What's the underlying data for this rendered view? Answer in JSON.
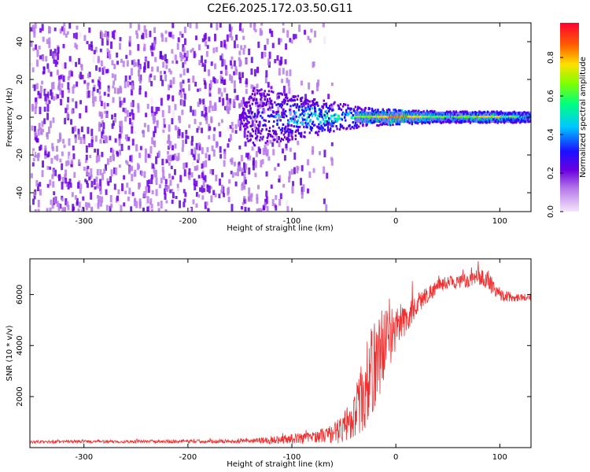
{
  "title": "C2E6.2025.172.03.50.G11",
  "chart_data": [
    {
      "type": "heatmap",
      "xlabel": "Height of straight line (km)",
      "ylabel": "Frequency (Hz)",
      "xlim": [
        -352,
        130
      ],
      "ylim": [
        -50,
        50
      ],
      "xticks": [
        -300,
        -200,
        -100,
        0,
        100
      ],
      "yticks": [
        -40,
        -20,
        0,
        20,
        40
      ],
      "colorbar": {
        "label": "Normalized spectral amplitude",
        "range": [
          0,
          0.98
        ],
        "ticks": [
          "0.0",
          "0.2",
          "0.4",
          "0.6",
          "0.8"
        ],
        "colormap": "rainbow",
        "colors": [
          "#f4e6fb",
          "#b77be8",
          "#6a00e0",
          "#1a10ff",
          "#00c8ff",
          "#00ff80",
          "#80ff00",
          "#ffe000",
          "#ff6000",
          "#ff0030"
        ]
      },
      "signal_profile": [
        {
          "x": -352,
          "width_hz": 0,
          "amplitude": 0.15
        },
        {
          "x": -150,
          "width_hz": 0,
          "amplitude": 0.2
        },
        {
          "x": -140,
          "width_hz": 16,
          "amplitude": 0.3
        },
        {
          "x": -100,
          "width_hz": 12,
          "amplitude": 0.5
        },
        {
          "x": -60,
          "width_hz": 8,
          "amplitude": 0.55
        },
        {
          "x": -30,
          "width_hz": 5,
          "amplitude": 0.65
        },
        {
          "x": 0,
          "width_hz": 4,
          "amplitude": 0.9
        },
        {
          "x": 50,
          "width_hz": 3,
          "amplitude": 0.6
        },
        {
          "x": 90,
          "width_hz": 3,
          "amplitude": 0.8
        },
        {
          "x": 130,
          "width_hz": 3,
          "amplitude": 0.5
        }
      ]
    },
    {
      "type": "line",
      "xlabel": "Height of straight line (km)",
      "ylabel": "SNR (10 * v/v)",
      "xlim": [
        -352,
        130
      ],
      "ylim": [
        0,
        7400
      ],
      "xticks": [
        -300,
        -200,
        -100,
        0,
        100
      ],
      "yticks": [
        2000,
        4000,
        6000
      ],
      "color": "#ee3030",
      "x": [
        -352,
        -300,
        -250,
        -200,
        -160,
        -140,
        -120,
        -100,
        -80,
        -60,
        -50,
        -40,
        -30,
        -25,
        -20,
        -15,
        -10,
        -5,
        0,
        10,
        20,
        30,
        40,
        50,
        70,
        80,
        90,
        100,
        110,
        120,
        130
      ],
      "y": [
        220,
        240,
        240,
        250,
        250,
        260,
        300,
        350,
        420,
        550,
        800,
        1300,
        2200,
        2800,
        3300,
        3800,
        4200,
        4400,
        4600,
        5000,
        5600,
        6000,
        6300,
        6500,
        6500,
        6700,
        6500,
        6000,
        5900,
        5900,
        5900
      ],
      "noise": [
        60,
        60,
        60,
        70,
        70,
        90,
        150,
        200,
        200,
        400,
        600,
        900,
        1600,
        1800,
        1800,
        1700,
        1400,
        1100,
        900,
        600,
        450,
        350,
        300,
        250,
        250,
        350,
        400,
        250,
        200,
        150,
        150
      ]
    }
  ]
}
